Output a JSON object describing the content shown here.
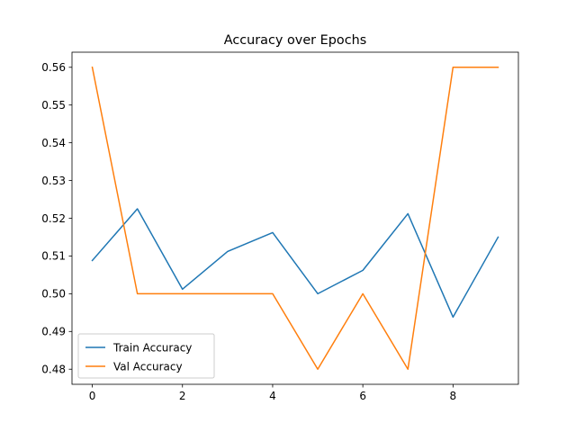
{
  "chart_data": {
    "type": "line",
    "title": "Accuracy over Epochs",
    "xlabel": "",
    "ylabel": "",
    "x": [
      0,
      1,
      2,
      3,
      4,
      5,
      6,
      7,
      8,
      9
    ],
    "xlim": [
      -0.45,
      9.45
    ],
    "ylim": [
      0.476,
      0.564
    ],
    "xticks": [
      0,
      2,
      4,
      6,
      8
    ],
    "xtick_labels": [
      "0",
      "2",
      "4",
      "6",
      "8"
    ],
    "yticks": [
      0.48,
      0.49,
      0.5,
      0.51,
      0.52,
      0.53,
      0.54,
      0.55,
      0.56
    ],
    "ytick_labels": [
      "0.48",
      "0.49",
      "0.50",
      "0.51",
      "0.52",
      "0.53",
      "0.54",
      "0.55",
      "0.56"
    ],
    "grid": false,
    "legend_position": "lower-left",
    "series": [
      {
        "name": "Train Accuracy",
        "color": "#1f77b4",
        "values": [
          0.5088,
          0.5225,
          0.5012,
          0.5112,
          0.5162,
          0.5,
          0.5062,
          0.5212,
          0.4938,
          0.515
        ]
      },
      {
        "name": "Val Accuracy",
        "color": "#ff7f0e",
        "values": [
          0.56,
          0.5,
          0.5,
          0.5,
          0.5,
          0.48,
          0.5,
          0.48,
          0.56,
          0.56
        ]
      }
    ]
  }
}
